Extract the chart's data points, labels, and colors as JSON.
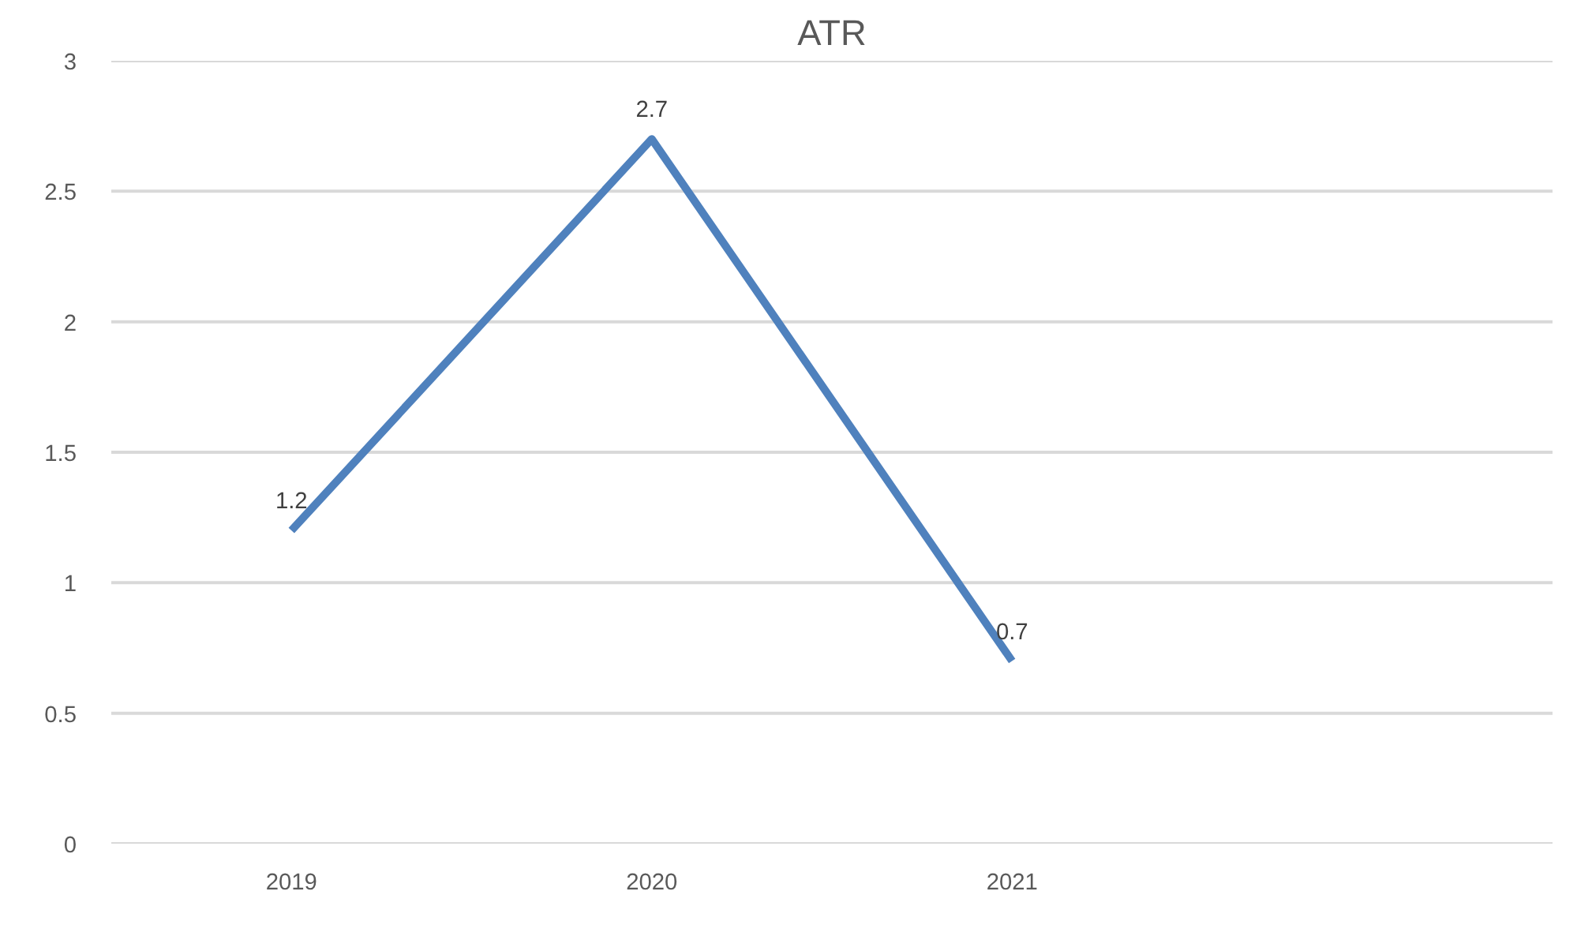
{
  "chart_data": {
    "type": "line",
    "title": "ATR",
    "categories": [
      "2019",
      "2020",
      "2021",
      null
    ],
    "series": [
      {
        "color": "#4f81bd",
        "values": [
          1.2,
          2.7,
          0.7,
          null
        ]
      }
    ],
    "ylim": [
      0,
      3
    ],
    "yticks": [
      0,
      0.5,
      1,
      1.5,
      2,
      2.5,
      3
    ],
    "grid": "y",
    "data_labels": true,
    "marker": "none",
    "line_style": "solid"
  }
}
